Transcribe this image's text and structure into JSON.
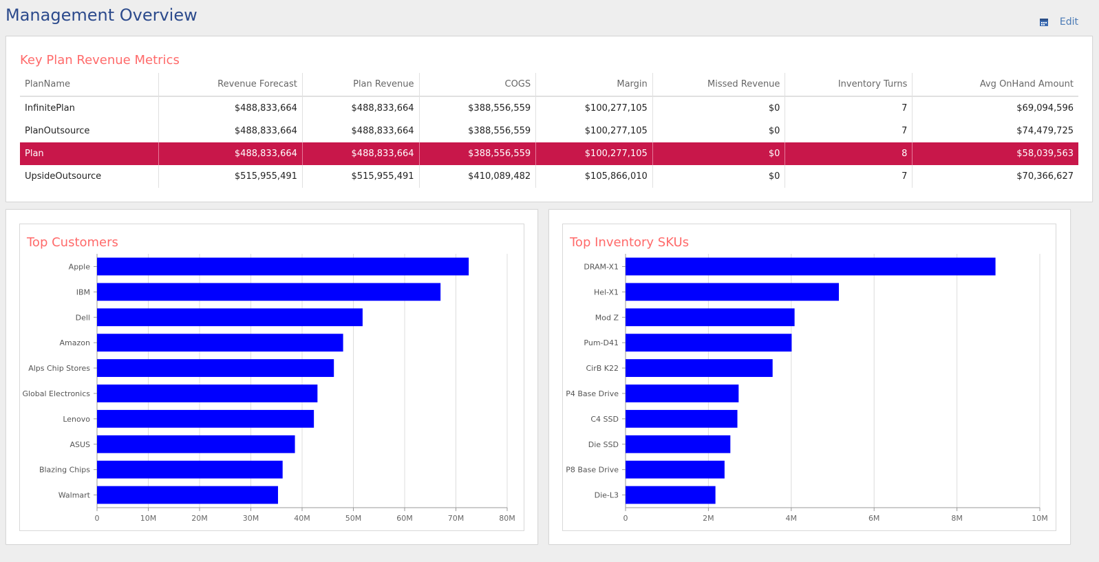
{
  "header": {
    "title": "Management Overview",
    "edit_label": "Edit",
    "edit_icon": "calendar-icon"
  },
  "metrics": {
    "title": "Key Plan Revenue Metrics",
    "columns": [
      "PlanName",
      "Revenue Forecast",
      "Plan Revenue",
      "COGS",
      "Margin",
      "Missed Revenue",
      "Inventory Turns",
      "Avg OnHand Amount"
    ],
    "rows": [
      [
        "InfinitePlan",
        "$488,833,664",
        "$488,833,664",
        "$388,556,559",
        "$100,277,105",
        "$0",
        "7",
        "$69,094,596"
      ],
      [
        "PlanOutsource",
        "$488,833,664",
        "$488,833,664",
        "$388,556,559",
        "$100,277,105",
        "$0",
        "7",
        "$74,479,725"
      ],
      [
        "Plan",
        "$488,833,664",
        "$488,833,664",
        "$388,556,559",
        "$100,277,105",
        "$0",
        "8",
        "$58,039,563"
      ],
      [
        "UpsideOutsource",
        "$515,955,491",
        "$515,955,491",
        "$410,089,482",
        "$105,866,010",
        "$0",
        "7",
        "$70,366,627"
      ]
    ],
    "selected_row": 2,
    "selected_color": "#c8174a"
  },
  "chart_data": [
    {
      "type": "bar",
      "orientation": "horizontal",
      "title": "Top Customers",
      "categories": [
        "Apple",
        "IBM",
        "Dell",
        "Amazon",
        "Alps Chip Stores",
        "Global Electronics",
        "Lenovo",
        "ASUS",
        "Blazing Chips",
        "Walmart"
      ],
      "values": [
        72.5,
        67,
        51.8,
        48,
        46.2,
        43,
        42.3,
        38.6,
        36.2,
        35.3
      ],
      "value_unit": "M",
      "xlim": [
        0,
        80
      ],
      "ticks": [
        "0",
        "10M",
        "20M",
        "30M",
        "40M",
        "50M",
        "60M",
        "70M",
        "80M"
      ],
      "tick_values": [
        0,
        10,
        20,
        30,
        40,
        50,
        60,
        70,
        80
      ],
      "grid": true,
      "bar_color": "#0000ff"
    },
    {
      "type": "bar",
      "orientation": "horizontal",
      "title": "Top Inventory SKUs",
      "categories": [
        "DRAM-X1",
        "Hel-X1",
        "Mod Z",
        "Pum-D41",
        "CirB K22",
        "P4 Base Drive",
        "C4 SSD",
        "Die SSD",
        "P8 Base Drive",
        "Die-L3"
      ],
      "values": [
        8.93,
        5.15,
        4.08,
        4.01,
        3.55,
        2.73,
        2.7,
        2.53,
        2.39,
        2.17
      ],
      "value_unit": "M",
      "xlim": [
        0,
        10
      ],
      "ticks": [
        "0",
        "2M",
        "4M",
        "6M",
        "8M",
        "10M"
      ],
      "tick_values": [
        0,
        2,
        4,
        6,
        8,
        10
      ],
      "grid": true,
      "bar_color": "#0000ff"
    }
  ]
}
